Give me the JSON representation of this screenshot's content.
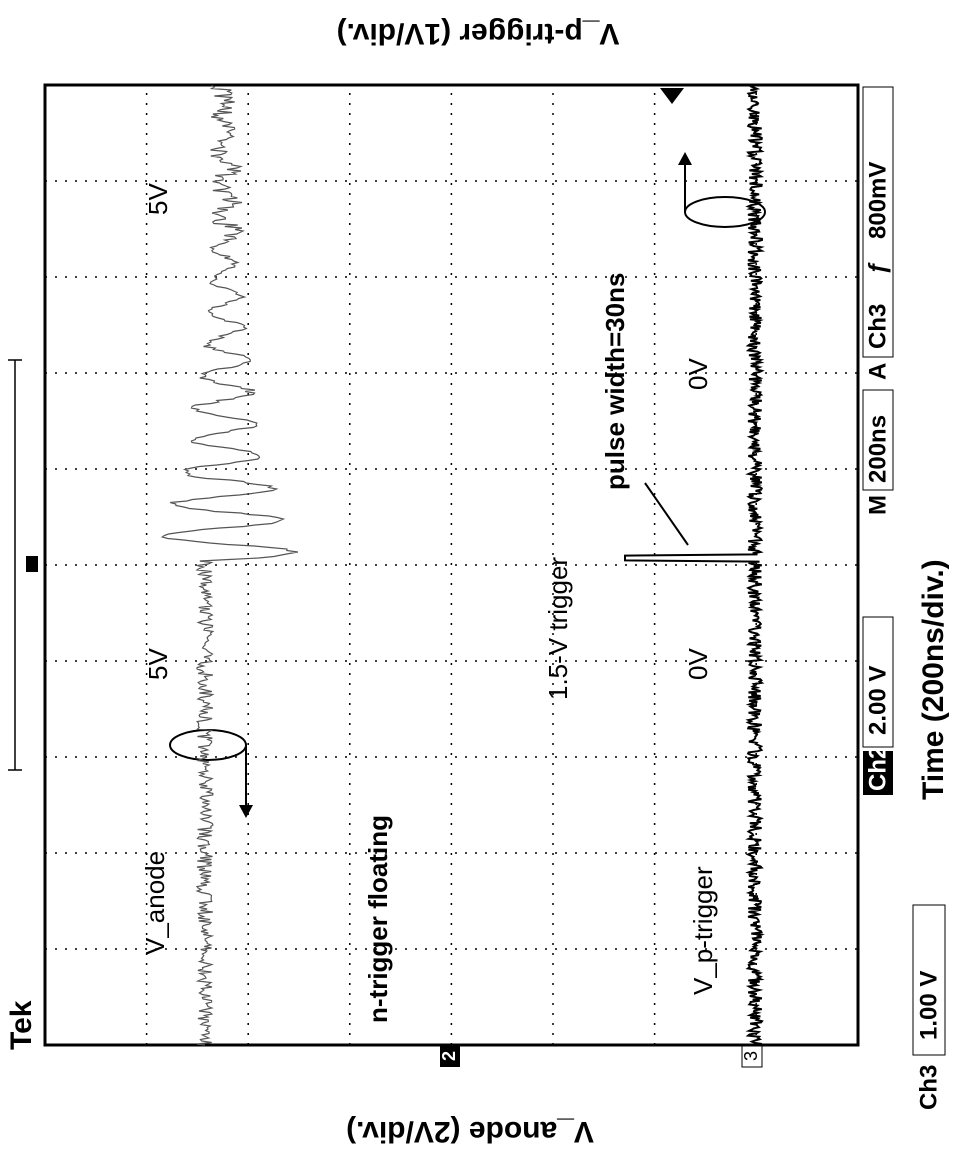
{
  "logo": "Tek",
  "axis_labels": {
    "top": "V_p-trigger (1V/div.)",
    "bottom": "V_anode (2V/div.)",
    "time": "Time (200ns/div.)"
  },
  "annotations": {
    "anode": "V_anode",
    "n_trigger": "n-trigger floating",
    "p_trigger": "V_p-trigger",
    "anode_level_left": "5V",
    "anode_level_right": "5V",
    "trigger_level": "1.5-V trigger",
    "p_level_left": "0V",
    "p_level_right": "0V",
    "pulse": "pulse width=30ns"
  },
  "markers": {
    "ch2": "2",
    "ch3": "3"
  },
  "status": {
    "ch2_label": "Ch2",
    "ch2_scale": "2.00 V",
    "time_label": "M",
    "time_scale": "200ns",
    "trigger_label": "A",
    "trigger_source": "Ch3",
    "trigger_slope": "ƒ",
    "trigger_level": "800mV",
    "ch3_label": "Ch3",
    "ch3_scale": "1.00 V"
  }
}
